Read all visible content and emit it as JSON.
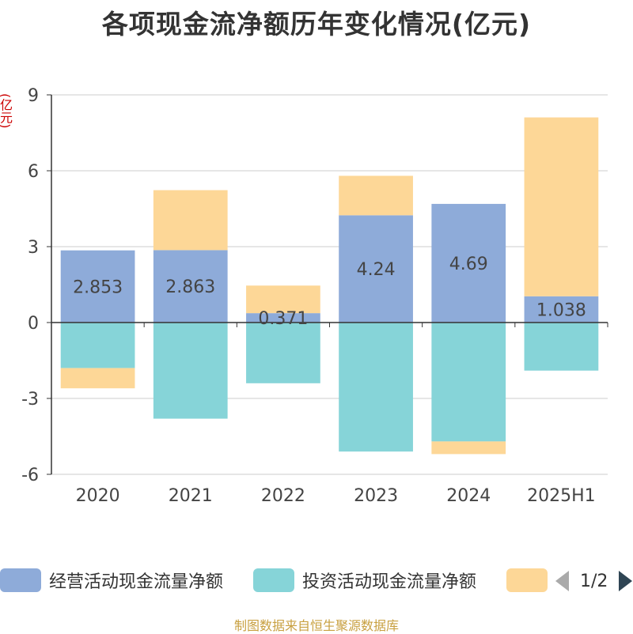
{
  "chart_data": {
    "type": "bar",
    "stacked": true,
    "title": "各项现金流净额历年变化情况(亿元)",
    "ylabel": "(亿元)",
    "ylim": [
      -6,
      9
    ],
    "yticks": [
      -6,
      -3,
      0,
      3,
      6,
      9
    ],
    "categories": [
      "2020",
      "2021",
      "2022",
      "2023",
      "2024",
      "2025H1"
    ],
    "series": [
      {
        "name": "经营活动现金流量净额",
        "color": "#8eabd9",
        "values": [
          2.853,
          2.863,
          0.371,
          4.24,
          4.69,
          1.038
        ],
        "labels": [
          "2.853",
          "2.863",
          "0.371",
          "4.24",
          "4.69",
          "1.038"
        ]
      },
      {
        "name": "投资活动现金流量净额",
        "color": "#86d4d8",
        "values": [
          -1.8,
          -3.8,
          -2.4,
          -5.1,
          -4.7,
          -1.9
        ]
      },
      {
        "name": "",
        "color": "#fdd797",
        "values": [
          -0.8,
          2.37,
          1.09,
          1.56,
          -0.5,
          7.07
        ]
      }
    ],
    "legend": {
      "position": "bottom",
      "page": "1/2"
    },
    "grid": true
  },
  "source": "制图数据来自恒生聚源数据库"
}
